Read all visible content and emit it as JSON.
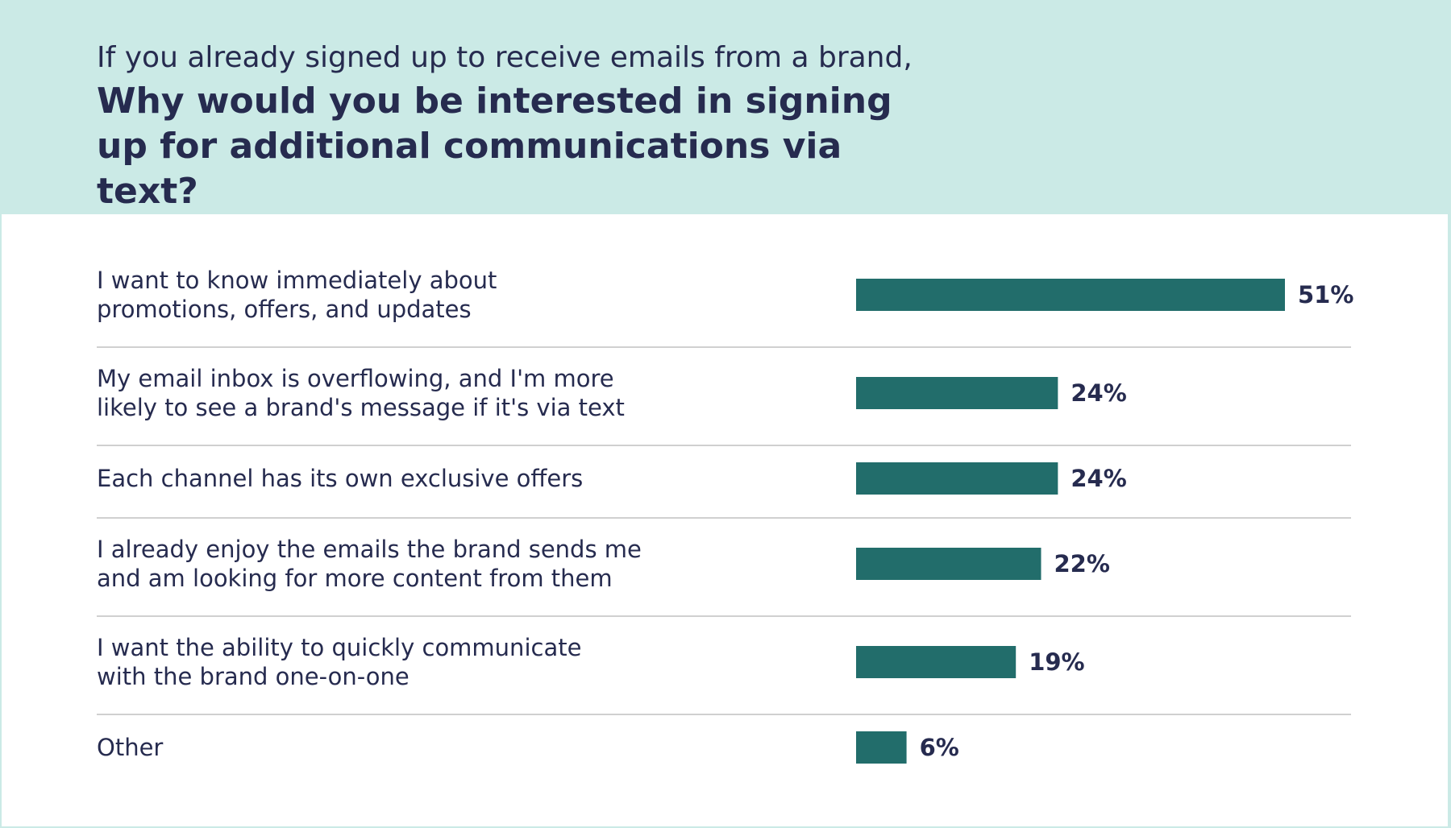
{
  "header": {
    "subtitle": "If you already signed up to receive emails from a brand,",
    "title": "Why would you be interested in signing up for additional communications via text?"
  },
  "colors": {
    "header_bg": "#cbeae6",
    "bar": "#226d6b",
    "text": "#262b4f",
    "divider": "#d0d0d0"
  },
  "chart_data": {
    "type": "bar",
    "orientation": "horizontal",
    "title": "Why would you be interested in signing up for additional communications via text?",
    "subtitle": "If you already signed up to receive emails from a brand,",
    "categories": [
      "I want to know immediately about\npromotions, offers, and updates",
      "My email inbox is overflowing, and I'm more\nlikely to see a brand's message if it's via text",
      "Each channel has its own exclusive offers",
      "I already enjoy the emails the brand sends me\nand am looking for more content from them",
      "I want the ability to quickly communicate\nwith the brand one-on-one",
      "Other"
    ],
    "values": [
      51,
      24,
      24,
      22,
      19,
      6
    ],
    "value_labels": [
      "51%",
      "24%",
      "24%",
      "22%",
      "19%",
      "6%"
    ],
    "unit": "%",
    "xlim": [
      0,
      51
    ],
    "grid": false,
    "legend": "none"
  }
}
